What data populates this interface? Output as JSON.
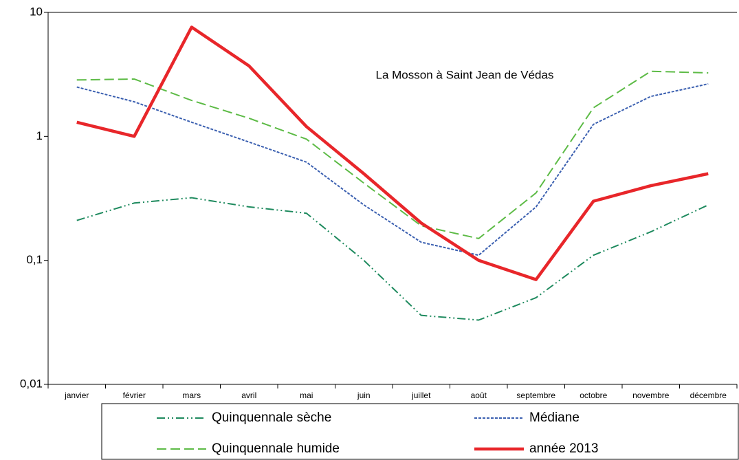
{
  "chart_data": {
    "type": "line",
    "title": "La Mosson à Saint Jean de Védas",
    "categories": [
      "janvier",
      "février",
      "mars",
      "avril",
      "mai",
      "juin",
      "juillet",
      "août",
      "septembre",
      "octobre",
      "novembre",
      "décembre"
    ],
    "series": [
      {
        "name": "Quinquennale sèche",
        "color": "#1e8a5e",
        "style": "dashdotdot",
        "values": [
          0.21,
          0.29,
          0.32,
          0.27,
          0.24,
          0.1,
          0.036,
          0.033,
          0.05,
          0.11,
          0.17,
          0.28
        ]
      },
      {
        "name": "Médiane",
        "color": "#3a5fb0",
        "style": "dotted",
        "values": [
          2.5,
          1.9,
          1.3,
          0.9,
          0.62,
          0.28,
          0.14,
          0.11,
          0.27,
          1.25,
          2.1,
          2.65
        ]
      },
      {
        "name": "Quinquennale humide",
        "color": "#5dbb46",
        "style": "dashed",
        "values": [
          2.85,
          2.9,
          1.95,
          1.4,
          0.95,
          0.42,
          0.19,
          0.15,
          0.35,
          1.7,
          3.35,
          3.25
        ]
      },
      {
        "name": "année 2013",
        "color": "#e8262a",
        "style": "solid",
        "values": [
          1.3,
          1.0,
          7.6,
          3.7,
          1.2,
          0.5,
          0.2,
          0.1,
          0.07,
          0.3,
          0.4,
          0.5
        ]
      }
    ],
    "ylim": [
      0.01,
      10
    ],
    "log_y": true,
    "yticks": [
      {
        "value": 0.01,
        "label": "0,01"
      },
      {
        "value": 0.1,
        "label": "0,1"
      },
      1,
      10
    ],
    "grid": false,
    "legend": "bottom"
  }
}
